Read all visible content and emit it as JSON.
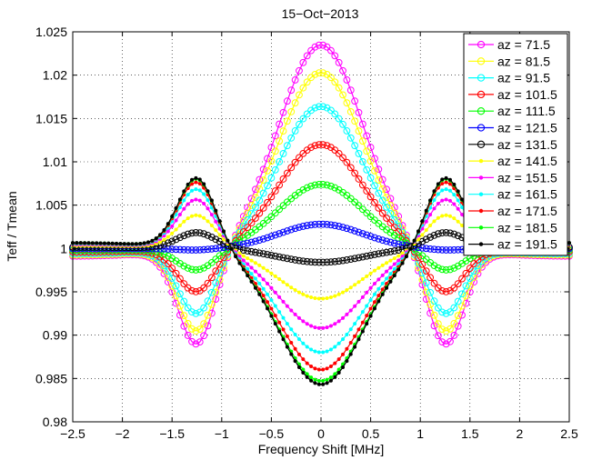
{
  "chart_data": {
    "type": "line",
    "title": "15−Oct−2013",
    "xlabel": "Frequency Shift [MHz]",
    "ylabel": "Teff / Tmean",
    "xlim": [
      -2.5,
      2.5
    ],
    "ylim": [
      0.98,
      1.025
    ],
    "xticks": [
      -2.5,
      -2,
      -1.5,
      -1,
      -0.5,
      0,
      0.5,
      1,
      1.5,
      2,
      2.5
    ],
    "xtick_labels": [
      "−2.5",
      "−2",
      "−1.5",
      "−1",
      "−0.5",
      "0",
      "0.5",
      "1",
      "1.5",
      "2",
      "2.5"
    ],
    "yticks": [
      0.98,
      0.985,
      0.99,
      0.995,
      1,
      1.005,
      1.01,
      1.015,
      1.02,
      1.025
    ],
    "ytick_labels": [
      "0.98",
      "0.985",
      "0.99",
      "0.995",
      "1",
      "1.005",
      "1.01",
      "1.015",
      "1.02",
      "1.025"
    ],
    "grid": "dotted",
    "legend_position": "top-right",
    "x_range_sampled": [
      -2.5,
      2.5
    ],
    "x_step": 0.04,
    "curve_shape_note": "Each series = 1 + A*exp(-x^2/0.36) + B*(exp(-(|x|-1.25)^2/0.072) + 0.08*exp(-(|x|-2.5)^2/1.5)); A is the centre deviation at x=0, B the side-lobe deviation near x=+-1.25.",
    "series": [
      {
        "name": "az = 71.5",
        "color": "#ff00ff",
        "marker": "circle",
        "center": 1.0235,
        "side": 0.989
      },
      {
        "name": "az = 81.5",
        "color": "#ffff00",
        "marker": "circle",
        "center": 1.0203,
        "side": 0.9905
      },
      {
        "name": "az = 91.5",
        "color": "#00ffff",
        "marker": "circle",
        "center": 1.0164,
        "side": 0.9925
      },
      {
        "name": "az = 101.5",
        "color": "#ff0000",
        "marker": "circle",
        "center": 1.012,
        "side": 0.995
      },
      {
        "name": "az = 111.5",
        "color": "#00ff00",
        "marker": "circle",
        "center": 1.0074,
        "side": 0.9975
      },
      {
        "name": "az = 121.5",
        "color": "#0000ff",
        "marker": "circle",
        "center": 1.0028,
        "side": 0.9998
      },
      {
        "name": "az = 131.5",
        "color": "#000000",
        "marker": "circle",
        "center": 0.9984,
        "side": 1.0018
      },
      {
        "name": "az = 141.5",
        "color": "#ffff00",
        "marker": "dot",
        "center": 0.9942,
        "side": 1.0038
      },
      {
        "name": "az = 151.5",
        "color": "#ff00ff",
        "marker": "dot",
        "center": 0.9908,
        "side": 1.0056
      },
      {
        "name": "az = 161.5",
        "color": "#00ffff",
        "marker": "dot",
        "center": 0.988,
        "side": 1.0068
      },
      {
        "name": "az = 171.5",
        "color": "#ff0000",
        "marker": "dot",
        "center": 0.986,
        "side": 1.0076
      },
      {
        "name": "az = 181.5",
        "color": "#00ff00",
        "marker": "dot",
        "center": 0.9847,
        "side": 1.008
      },
      {
        "name": "az = 191.5",
        "color": "#000000",
        "marker": "dot",
        "center": 0.9843,
        "side": 1.0081
      }
    ]
  }
}
